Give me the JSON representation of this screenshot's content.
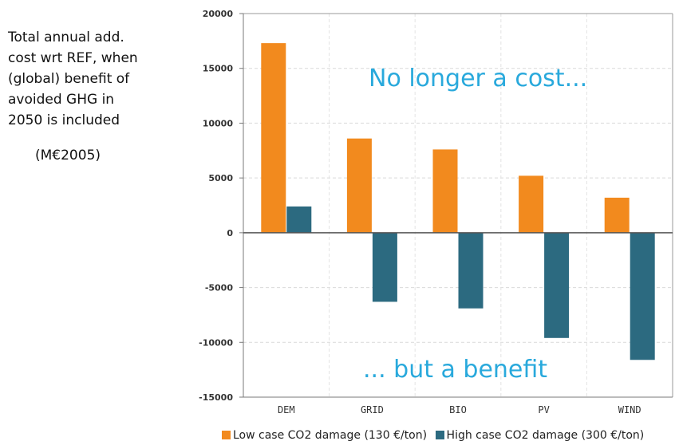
{
  "side_note": {
    "lines": [
      "Total annual add.",
      "cost wrt REF, when",
      "(global) benefit of",
      "avoided GHG in",
      "2050 is included"
    ],
    "unit": "(M€2005)"
  },
  "chart_data": {
    "type": "bar",
    "categories": [
      "DEM",
      "GRID",
      "BIO",
      "PV",
      "WIND"
    ],
    "series": [
      {
        "name": "Low case CO2 damage (130 €/ton)",
        "color": "#f28a1e",
        "values": [
          17300,
          8600,
          7600,
          5200,
          3200
        ]
      },
      {
        "name": "High case CO2 damage (300 €/ton)",
        "color": "#2c6a80",
        "values": [
          2400,
          -6300,
          -6900,
          -9600,
          -11600
        ]
      }
    ],
    "ylim": [
      -15000,
      20000
    ],
    "yticks": [
      20000,
      15000,
      10000,
      5000,
      0,
      -5000,
      -10000,
      -15000
    ],
    "grid": true,
    "legend_position": "bottom",
    "annotations": [
      "No longer a cost...",
      "... but a benefit"
    ]
  }
}
